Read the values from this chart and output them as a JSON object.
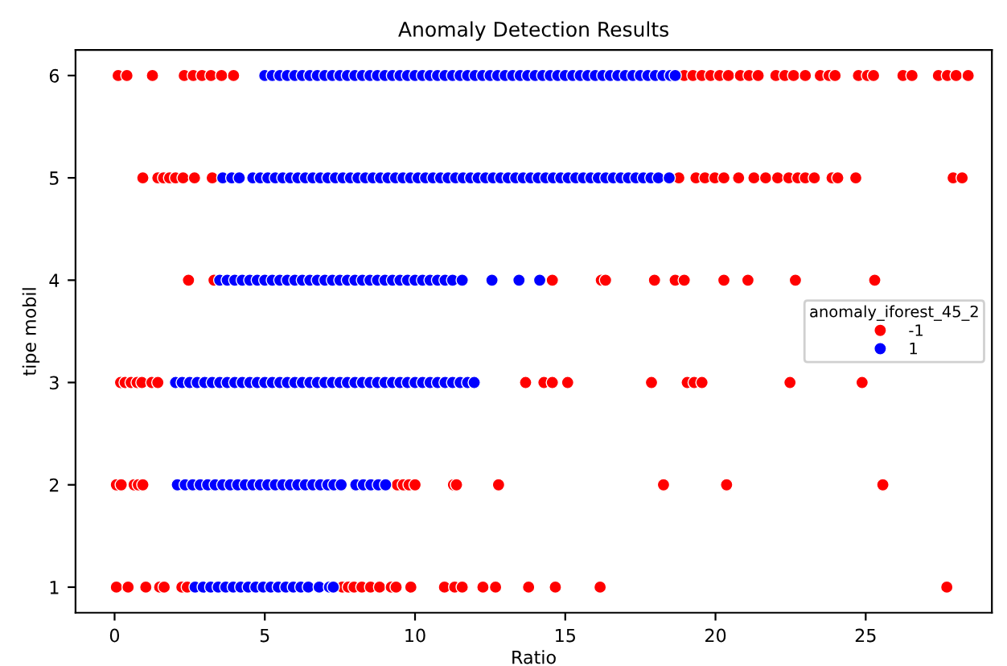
{
  "chart_data": {
    "type": "scatter",
    "title": "Anomaly Detection Results",
    "xlabel": "Ratio",
    "ylabel": "tipe mobil",
    "legend_title": "anomaly_iforest_45_2",
    "legend": "right",
    "marker": "circle",
    "grid": false,
    "xlim": [
      -1.3,
      29.2
    ],
    "xticks": [
      0,
      5,
      10,
      15,
      20,
      25
    ],
    "ylim": [
      0.75,
      6.25
    ],
    "yticks": [
      1,
      2,
      3,
      4,
      5,
      6
    ],
    "series": [
      {
        "name": "-1",
        "color": "#ff0000",
        "x": [
          0.12,
          0.41,
          1.26,
          2.32,
          2.62,
          2.91,
          3.21,
          3.56,
          3.96,
          18.96,
          19.25,
          19.55,
          19.84,
          20.14,
          20.43,
          20.83,
          21.12,
          21.42,
          22.01,
          22.31,
          22.6,
          22.99,
          23.49,
          23.78,
          23.98,
          24.76,
          25.06,
          25.26,
          26.24,
          26.54,
          27.42,
          27.72,
          28.01,
          28.41,
          0.94,
          1.44,
          1.63,
          1.83,
          2.03,
          2.28,
          2.66,
          3.25,
          18.78,
          19.35,
          19.65,
          19.98,
          20.28,
          20.77,
          21.28,
          21.67,
          22.07,
          22.44,
          22.74,
          22.99,
          23.29,
          23.88,
          24.07,
          24.67,
          27.91,
          28.21,
          2.46,
          3.31,
          14.57,
          16.2,
          16.34,
          17.97,
          18.66,
          18.96,
          20.28,
          21.08,
          22.66,
          25.3,
          0.2,
          0.35,
          0.55,
          0.75,
          0.91,
          1.24,
          1.44,
          13.68,
          14.29,
          14.57,
          15.08,
          17.87,
          19.06,
          19.29,
          19.55,
          22.48,
          24.88,
          0.06,
          0.22,
          0.65,
          0.79,
          0.94,
          9.41,
          9.61,
          9.8,
          10.0,
          11.28,
          11.38,
          12.78,
          18.27,
          20.37,
          25.57,
          0.06,
          0.45,
          1.04,
          1.5,
          1.65,
          2.24,
          2.42,
          7.58,
          7.78,
          7.97,
          8.23,
          8.52,
          8.82,
          9.21,
          9.37,
          9.86,
          10.98,
          11.32,
          11.57,
          12.26,
          12.68,
          13.78,
          14.67,
          16.16,
          27.7
        ],
        "values": [
          6,
          6,
          6,
          6,
          6,
          6,
          6,
          6,
          6,
          6,
          6,
          6,
          6,
          6,
          6,
          6,
          6,
          6,
          6,
          6,
          6,
          6,
          6,
          6,
          6,
          6,
          6,
          6,
          6,
          6,
          6,
          6,
          6,
          6,
          5,
          5,
          5,
          5,
          5,
          5,
          5,
          5,
          5,
          5,
          5,
          5,
          5,
          5,
          5,
          5,
          5,
          5,
          5,
          5,
          5,
          5,
          5,
          5,
          5,
          5,
          4,
          4,
          4,
          4,
          4,
          4,
          4,
          4,
          4,
          4,
          4,
          4,
          3,
          3,
          3,
          3,
          3,
          3,
          3,
          3,
          3,
          3,
          3,
          3,
          3,
          3,
          3,
          3,
          3,
          2,
          2,
          2,
          2,
          2,
          2,
          2,
          2,
          2,
          2,
          2,
          2,
          2,
          2,
          2,
          1,
          1,
          1,
          1,
          1,
          1,
          1,
          1,
          1,
          1,
          1,
          1,
          1,
          1,
          1,
          1,
          1,
          1,
          1,
          1,
          1,
          1,
          1,
          1,
          1
        ]
      },
      {
        "name": "1",
        "color": "#0000ff",
        "x": [
          5,
          5.25,
          5.5,
          5.75,
          6,
          6.25,
          6.5,
          6.75,
          7,
          7.25,
          7.5,
          7.75,
          8,
          8.25,
          8.5,
          8.75,
          9,
          9.25,
          9.5,
          9.75,
          10,
          10.25,
          10.5,
          10.75,
          11,
          11.25,
          11.5,
          11.75,
          12,
          12.25,
          12.5,
          12.75,
          13,
          13.25,
          13.5,
          13.75,
          14,
          14.25,
          14.5,
          14.75,
          15,
          15.25,
          15.5,
          15.75,
          16,
          16.25,
          16.5,
          16.75,
          17,
          17.25,
          17.5,
          17.75,
          18,
          18.25,
          18.5,
          18.66,
          3.6,
          3.9,
          4.15,
          4.6,
          4.85,
          5.1,
          5.35,
          5.6,
          5.85,
          6.1,
          6.35,
          6.6,
          6.85,
          7.1,
          7.35,
          7.6,
          7.85,
          8.1,
          8.35,
          8.6,
          8.85,
          9.1,
          9.35,
          9.6,
          9.85,
          10.1,
          10.35,
          10.6,
          10.85,
          11.1,
          11.35,
          11.6,
          11.85,
          12.1,
          12.35,
          12.6,
          12.85,
          13.1,
          13.35,
          13.6,
          13.85,
          14.1,
          14.35,
          14.6,
          14.85,
          15.1,
          15.35,
          15.6,
          15.85,
          16.1,
          16.35,
          16.6,
          16.85,
          17.1,
          17.35,
          17.6,
          17.85,
          18.1,
          18.46,
          3.5,
          3.75,
          4,
          4.25,
          4.5,
          4.75,
          5,
          5.25,
          5.5,
          5.75,
          6,
          6.25,
          6.5,
          6.75,
          7,
          7.25,
          7.5,
          7.75,
          8,
          8.25,
          8.5,
          8.75,
          9,
          9.25,
          9.5,
          9.75,
          10,
          10.25,
          10.5,
          10.75,
          11,
          11.25,
          11.57,
          12.56,
          13.46,
          14.15,
          2.03,
          2.25,
          2.5,
          2.75,
          3,
          3.25,
          3.5,
          3.75,
          4,
          4.25,
          4.5,
          4.75,
          5,
          5.25,
          5.5,
          5.75,
          6,
          6.25,
          6.5,
          6.75,
          7,
          7.25,
          7.5,
          7.75,
          8,
          8.25,
          8.5,
          8.75,
          9,
          9.25,
          9.5,
          9.75,
          10,
          10.25,
          10.5,
          10.75,
          11,
          11.25,
          11.5,
          11.75,
          11.97,
          2.09,
          2.35,
          2.6,
          2.85,
          3.1,
          3.35,
          3.6,
          3.85,
          4.1,
          4.35,
          4.6,
          4.85,
          5.1,
          5.35,
          5.6,
          5.85,
          6.1,
          6.35,
          6.6,
          6.85,
          7.1,
          7.3,
          7.54,
          8.03,
          8.28,
          8.53,
          8.78,
          9.02,
          2.68,
          2.95,
          3.2,
          3.45,
          3.7,
          3.95,
          4.2,
          4.45,
          4.7,
          4.95,
          5.2,
          5.45,
          5.7,
          5.95,
          6.2,
          6.45,
          6.81,
          7.15,
          7.28
        ],
        "values": [
          6,
          6,
          6,
          6,
          6,
          6,
          6,
          6,
          6,
          6,
          6,
          6,
          6,
          6,
          6,
          6,
          6,
          6,
          6,
          6,
          6,
          6,
          6,
          6,
          6,
          6,
          6,
          6,
          6,
          6,
          6,
          6,
          6,
          6,
          6,
          6,
          6,
          6,
          6,
          6,
          6,
          6,
          6,
          6,
          6,
          6,
          6,
          6,
          6,
          6,
          6,
          6,
          6,
          6,
          6,
          6,
          5,
          5,
          5,
          5,
          5,
          5,
          5,
          5,
          5,
          5,
          5,
          5,
          5,
          5,
          5,
          5,
          5,
          5,
          5,
          5,
          5,
          5,
          5,
          5,
          5,
          5,
          5,
          5,
          5,
          5,
          5,
          5,
          5,
          5,
          5,
          5,
          5,
          5,
          5,
          5,
          5,
          5,
          5,
          5,
          5,
          5,
          5,
          5,
          5,
          5,
          5,
          5,
          5,
          5,
          5,
          5,
          5,
          5,
          5,
          4,
          4,
          4,
          4,
          4,
          4,
          4,
          4,
          4,
          4,
          4,
          4,
          4,
          4,
          4,
          4,
          4,
          4,
          4,
          4,
          4,
          4,
          4,
          4,
          4,
          4,
          4,
          4,
          4,
          4,
          4,
          4,
          4,
          4,
          4,
          4,
          3,
          3,
          3,
          3,
          3,
          3,
          3,
          3,
          3,
          3,
          3,
          3,
          3,
          3,
          3,
          3,
          3,
          3,
          3,
          3,
          3,
          3,
          3,
          3,
          3,
          3,
          3,
          3,
          3,
          3,
          3,
          3,
          3,
          3,
          3,
          3,
          3,
          3,
          3,
          3,
          3,
          2,
          2,
          2,
          2,
          2,
          2,
          2,
          2,
          2,
          2,
          2,
          2,
          2,
          2,
          2,
          2,
          2,
          2,
          2,
          2,
          2,
          2,
          2,
          2,
          2,
          2,
          2,
          2,
          1,
          1,
          1,
          1,
          1,
          1,
          1,
          1,
          1,
          1,
          1,
          1,
          1,
          1,
          1,
          1,
          1,
          1,
          1
        ]
      }
    ]
  }
}
